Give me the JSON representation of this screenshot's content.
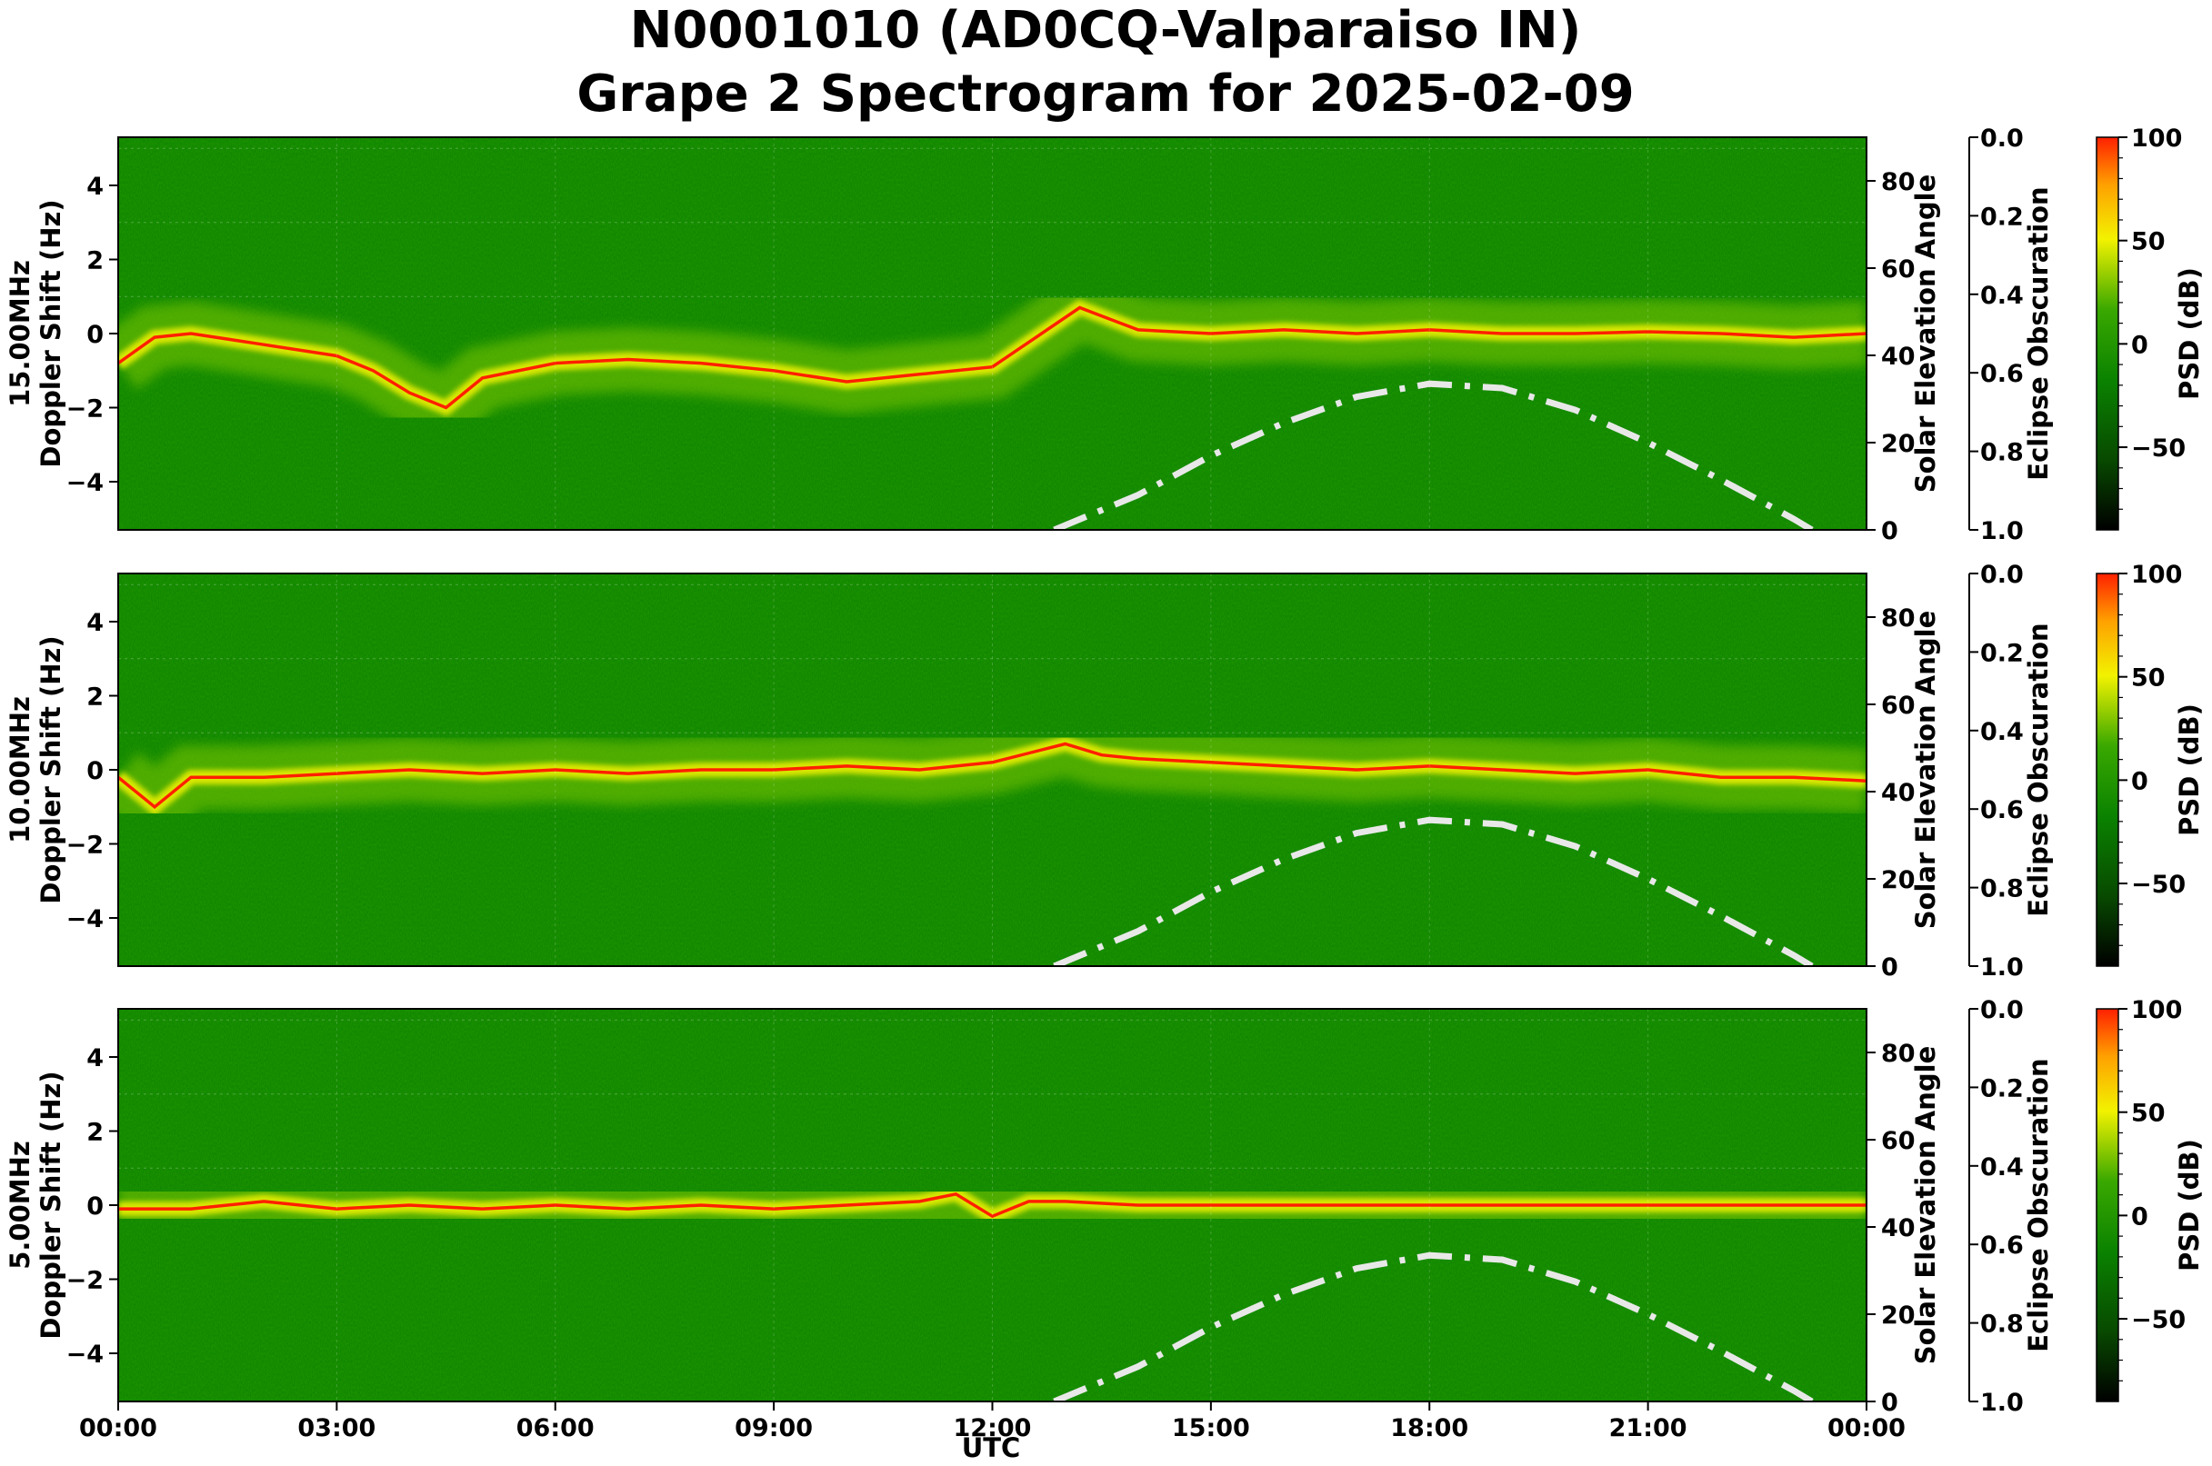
{
  "title_line1": "N0001010 (AD0CQ-Valparaiso IN)",
  "title_line2": "Grape 2 Spectrogram for 2025-02-09",
  "x_axis": {
    "label": "UTC",
    "ticks": [
      "00:00",
      "03:00",
      "06:00",
      "09:00",
      "12:00",
      "15:00",
      "18:00",
      "21:00",
      "00:00"
    ]
  },
  "y_left_ticks": [
    "4",
    "2",
    "0",
    "−2",
    "−4"
  ],
  "y_right_ticks": [
    "80",
    "60",
    "40",
    "20",
    "0"
  ],
  "obscuration_ticks": [
    "0.0",
    "0.2",
    "0.4",
    "0.6",
    "0.8",
    "1.0"
  ],
  "colorbar_ticks": [
    "100",
    "50",
    "0",
    "−50"
  ],
  "ylabel_doppler": "Doppler Shift (Hz)",
  "ylabel_elevation": "Solar Elevation Angle",
  "ylabel_obscuration": "Eclipse Obscuration",
  "colorbar_label": "PSD (dB)",
  "panels": [
    {
      "freq_label": "15.00MHz"
    },
    {
      "freq_label": "10.00MHz"
    },
    {
      "freq_label": "5.00MHz"
    }
  ],
  "colors": {
    "background_green": "#0a8200",
    "signal_yellow": "#f2f200",
    "signal_red": "#ff2000",
    "elevation_curve": "#e8e8e8"
  },
  "chart_data": {
    "type": "heatmap",
    "title": "N0001010 (AD0CQ-Valparaiso IN)\nGrape 2 Spectrogram for 2025-02-09",
    "xlabel": "UTC",
    "xlim": [
      "00:00",
      "24:00"
    ],
    "ylim_doppler_hz": [
      -5,
      5
    ],
    "ylim_elevation_deg": [
      0,
      90
    ],
    "ylim_obscuration": [
      1.0,
      0.0
    ],
    "colorbar": {
      "label": "PSD (dB)",
      "range": [
        -90,
        100
      ],
      "colors": [
        "#000000",
        "#0a8200",
        "#f2f200",
        "#ff2000"
      ]
    },
    "solar_elevation": {
      "style": "dash-dot",
      "points": [
        [
          12.85,
          0
        ],
        [
          14,
          8
        ],
        [
          15,
          17
        ],
        [
          16,
          24.5
        ],
        [
          17,
          30.5
        ],
        [
          18,
          33.5
        ],
        [
          19,
          32.5
        ],
        [
          20,
          27.5
        ],
        [
          21,
          20
        ],
        [
          22,
          11.5
        ],
        [
          23,
          2.5
        ],
        [
          23.25,
          0
        ]
      ]
    },
    "series": [
      {
        "name": "15.00MHz",
        "doppler_trace": [
          [
            0,
            -0.8
          ],
          [
            0.5,
            -0.1
          ],
          [
            1,
            0.0
          ],
          [
            2,
            -0.3
          ],
          [
            3,
            -0.6
          ],
          [
            3.5,
            -1.0
          ],
          [
            4,
            -1.6
          ],
          [
            4.5,
            -2.0
          ],
          [
            5,
            -1.2
          ],
          [
            6,
            -0.8
          ],
          [
            7,
            -0.7
          ],
          [
            8,
            -0.8
          ],
          [
            9,
            -1.0
          ],
          [
            10,
            -1.3
          ],
          [
            11,
            -1.1
          ],
          [
            12,
            -0.9
          ],
          [
            13.2,
            0.7
          ],
          [
            13.6,
            0.4
          ],
          [
            14,
            0.1
          ],
          [
            15,
            0.0
          ],
          [
            16,
            0.1
          ],
          [
            17,
            0.0
          ],
          [
            18,
            0.1
          ],
          [
            19,
            0.0
          ],
          [
            20,
            0.0
          ],
          [
            21,
            0.05
          ],
          [
            22,
            0.0
          ],
          [
            23,
            -0.1
          ],
          [
            24,
            0.0
          ]
        ]
      },
      {
        "name": "10.00MHz",
        "doppler_trace": [
          [
            0,
            -0.2
          ],
          [
            0.5,
            -1.0
          ],
          [
            1,
            -0.2
          ],
          [
            2,
            -0.2
          ],
          [
            3,
            -0.1
          ],
          [
            4,
            0.0
          ],
          [
            5,
            -0.1
          ],
          [
            6,
            0.0
          ],
          [
            7,
            -0.1
          ],
          [
            8,
            0.0
          ],
          [
            9,
            0.0
          ],
          [
            10,
            0.1
          ],
          [
            11,
            0.0
          ],
          [
            12,
            0.2
          ],
          [
            13,
            0.7
          ],
          [
            13.5,
            0.4
          ],
          [
            14,
            0.3
          ],
          [
            15,
            0.2
          ],
          [
            16,
            0.1
          ],
          [
            17,
            0.0
          ],
          [
            18,
            0.1
          ],
          [
            19,
            0.0
          ],
          [
            20,
            -0.1
          ],
          [
            21,
            0.0
          ],
          [
            22,
            -0.2
          ],
          [
            23,
            -0.2
          ],
          [
            24,
            -0.3
          ]
        ]
      },
      {
        "name": "5.00MHz",
        "doppler_trace": [
          [
            0,
            -0.1
          ],
          [
            1,
            -0.1
          ],
          [
            2,
            0.1
          ],
          [
            3,
            -0.1
          ],
          [
            4,
            0.0
          ],
          [
            5,
            -0.1
          ],
          [
            6,
            0.0
          ],
          [
            7,
            -0.1
          ],
          [
            8,
            0.0
          ],
          [
            9,
            -0.1
          ],
          [
            10,
            0.0
          ],
          [
            11,
            0.1
          ],
          [
            11.5,
            0.3
          ],
          [
            12,
            -0.3
          ],
          [
            12.5,
            0.1
          ],
          [
            13,
            0.1
          ],
          [
            14,
            0.0
          ],
          [
            16,
            0.0
          ],
          [
            18,
            0.0
          ],
          [
            20,
            0.0
          ],
          [
            22,
            0.0
          ],
          [
            24,
            0.0
          ]
        ]
      }
    ]
  }
}
